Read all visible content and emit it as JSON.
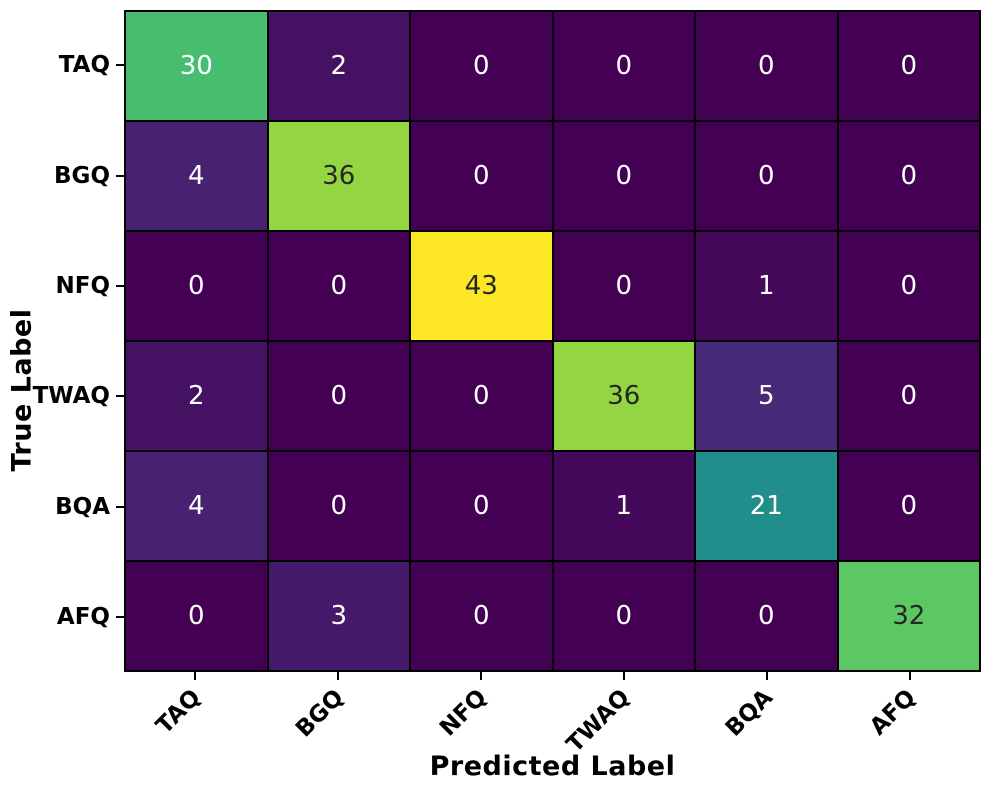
{
  "chart_data": {
    "type": "heatmap",
    "title": "",
    "xlabel": "Predicted Label",
    "ylabel": "True Label",
    "x_categories": [
      "TAQ",
      "BGQ",
      "NFQ",
      "TWAQ",
      "BQA",
      "AFQ"
    ],
    "y_categories": [
      "TAQ",
      "BGQ",
      "NFQ",
      "TWAQ",
      "BQA",
      "AFQ"
    ],
    "matrix": [
      [
        30,
        2,
        0,
        0,
        0,
        0
      ],
      [
        4,
        36,
        0,
        0,
        0,
        0
      ],
      [
        0,
        0,
        43,
        0,
        1,
        0
      ],
      [
        2,
        0,
        0,
        36,
        5,
        0
      ],
      [
        4,
        0,
        0,
        1,
        21,
        0
      ],
      [
        0,
        3,
        0,
        0,
        0,
        32
      ]
    ],
    "vmin": 0,
    "vmax": 43,
    "colormap": "viridis",
    "colormap_anchors": [
      "#440154",
      "#472d7b",
      "#3b528b",
      "#2c728e",
      "#21918c",
      "#27ad81",
      "#5ec962",
      "#aadc32",
      "#fde725"
    ],
    "grid_line_color": "#000000",
    "background_color": "#ffffff",
    "annot_color_light": "#ffffff",
    "annot_color_dark": "#262626",
    "tick_color": "#000000",
    "legend": "none",
    "grid": "cell-borders"
  }
}
